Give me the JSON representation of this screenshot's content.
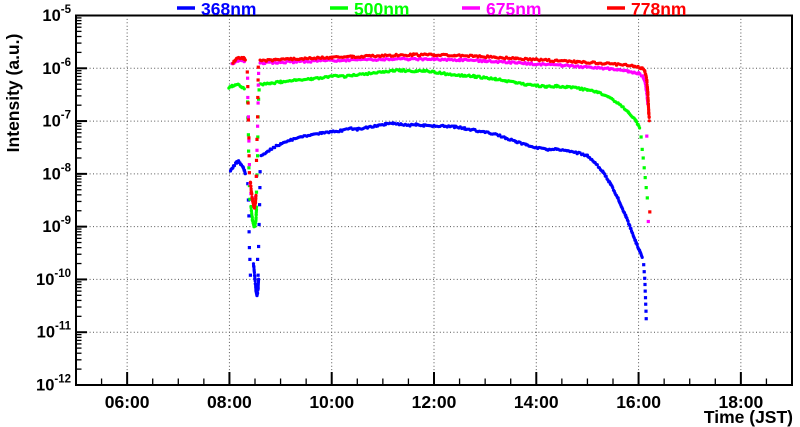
{
  "chart_data": {
    "type": "scatter",
    "title": "",
    "xlabel": "Time (JST)",
    "ylabel": "Intensity (a.u.)",
    "x_axis": {
      "range_hours": [
        5,
        19
      ],
      "tick_hours": [
        6,
        8,
        10,
        12,
        14,
        16,
        18
      ],
      "tick_labels": [
        "06:00",
        "08:00",
        "10:00",
        "12:00",
        "14:00",
        "16:00",
        "18:00"
      ],
      "minor_step": 0.5
    },
    "y_axis": {
      "scale": "log",
      "top_exponent": -5,
      "bottom_exponent": -12,
      "tick_exponents": [
        -5,
        -6,
        -7,
        -8,
        -9,
        -10,
        -11,
        -12
      ]
    },
    "grid": {
      "style": "dotted",
      "color": "#555555",
      "on_major_ticks": true
    },
    "legend_position": "top",
    "series": [
      {
        "name": "368nm",
        "color": "#0000ff",
        "segments": [
          [
            [
              8.02,
              1.15e-08
            ],
            [
              8.08,
              1.4e-08
            ],
            [
              8.14,
              1.65e-08
            ],
            [
              8.18,
              1.75e-08
            ],
            [
              8.22,
              1.5e-08
            ],
            [
              8.27,
              1.35e-08
            ],
            [
              8.31,
              1e-08
            ]
          ],
          [
            [
              8.47,
              2e-10
            ],
            [
              8.5,
              1e-10
            ],
            [
              8.52,
              6e-11
            ],
            [
              8.54,
              5e-11
            ],
            [
              8.56,
              6.5e-11
            ],
            [
              8.57,
              1e-10
            ]
          ],
          [
            [
              8.62,
              2.2e-08
            ],
            [
              8.8,
              2.9e-08
            ],
            [
              9.0,
              3.7e-08
            ],
            [
              9.2,
              4.4e-08
            ],
            [
              9.4,
              5e-08
            ],
            [
              9.6,
              5.5e-08
            ],
            [
              9.8,
              5.9e-08
            ],
            [
              10.0,
              6.2e-08
            ],
            [
              10.2,
              6.6e-08
            ],
            [
              10.35,
              7.2e-08
            ],
            [
              10.5,
              7e-08
            ],
            [
              10.7,
              7.6e-08
            ],
            [
              10.9,
              8.2e-08
            ],
            [
              11.05,
              8.8e-08
            ],
            [
              11.2,
              9.1e-08
            ],
            [
              11.35,
              8.7e-08
            ],
            [
              11.5,
              8.3e-08
            ],
            [
              11.65,
              8.6e-08
            ],
            [
              11.8,
              8.3e-08
            ],
            [
              12.0,
              8e-08
            ],
            [
              12.2,
              8.1e-08
            ],
            [
              12.4,
              7.8e-08
            ],
            [
              12.6,
              7.3e-08
            ],
            [
              12.8,
              6.7e-08
            ],
            [
              13.0,
              6.2e-08
            ],
            [
              13.2,
              5.6e-08
            ],
            [
              13.4,
              4.8e-08
            ],
            [
              13.6,
              4.1e-08
            ],
            [
              13.8,
              3.5e-08
            ],
            [
              14.0,
              3.1e-08
            ],
            [
              14.2,
              2.9e-08
            ],
            [
              14.4,
              2.9e-08
            ],
            [
              14.6,
              2.7e-08
            ],
            [
              14.8,
              2.5e-08
            ],
            [
              15.0,
              2.2e-08
            ],
            [
              15.15,
              1.6e-08
            ],
            [
              15.3,
              1.1e-08
            ],
            [
              15.45,
              6.5e-09
            ],
            [
              15.6,
              3.4e-09
            ],
            [
              15.75,
              1.6e-09
            ],
            [
              15.85,
              9e-10
            ],
            [
              15.95,
              5e-10
            ],
            [
              16.02,
              3.5e-10
            ],
            [
              16.07,
              2.6e-10
            ]
          ]
        ],
        "scatter": [
          [
            8.36,
            6.5e-09
          ],
          [
            8.37,
            3.2e-09
          ],
          [
            8.38,
            1.6e-09
          ],
          [
            8.385,
            8e-10
          ],
          [
            8.39,
            4e-10
          ],
          [
            8.4,
            2.4e-10
          ],
          [
            8.41,
            1.2e-10
          ],
          [
            8.55,
            2.4e-10
          ],
          [
            8.56,
            1.2e-10
          ],
          [
            8.57,
            4.2e-10
          ],
          [
            8.58,
            1.1e-09
          ],
          [
            8.59,
            2.6e-09
          ],
          [
            8.595,
            5.5e-09
          ],
          [
            8.6,
            1.1e-08
          ],
          [
            16.1,
            1.9e-10
          ],
          [
            16.11,
            1.4e-10
          ],
          [
            16.12,
            1.05e-10
          ],
          [
            16.125,
            8e-11
          ],
          [
            16.13,
            6e-11
          ],
          [
            16.135,
            4.5e-11
          ],
          [
            16.14,
            3.4e-11
          ],
          [
            16.145,
            2.5e-11
          ],
          [
            16.15,
            1.8e-11
          ]
        ]
      },
      {
        "name": "500nm",
        "color": "#00ff00",
        "segments": [
          [
            [
              7.99,
              4.2e-07
            ],
            [
              8.05,
              4.6e-07
            ],
            [
              8.11,
              4.9e-07
            ],
            [
              8.17,
              5e-07
            ],
            [
              8.23,
              4.6e-07
            ],
            [
              8.29,
              4.1e-07
            ]
          ],
          [
            [
              8.42,
              2.4e-09
            ],
            [
              8.45,
              1.35e-09
            ],
            [
              8.48,
              1e-09
            ],
            [
              8.5,
              1.05e-09
            ],
            [
              8.52,
              1.4e-09
            ],
            [
              8.53,
              2.3e-09
            ]
          ],
          [
            [
              8.6,
              4.9e-07
            ],
            [
              8.8,
              5.2e-07
            ],
            [
              9.0,
              5.5e-07
            ],
            [
              9.3,
              5.9e-07
            ],
            [
              9.6,
              6.3e-07
            ],
            [
              9.9,
              6.8e-07
            ],
            [
              10.1,
              7.2e-07
            ],
            [
              10.25,
              7e-07
            ],
            [
              10.4,
              7.4e-07
            ],
            [
              10.7,
              7.9e-07
            ],
            [
              11.0,
              8.5e-07
            ],
            [
              11.2,
              8.9e-07
            ],
            [
              11.35,
              9.2e-07
            ],
            [
              11.5,
              8.9e-07
            ],
            [
              11.65,
              8.7e-07
            ],
            [
              11.8,
              8.9e-07
            ],
            [
              12.0,
              8.5e-07
            ],
            [
              12.2,
              7.9e-07
            ],
            [
              12.4,
              7.5e-07
            ],
            [
              12.6,
              7.3e-07
            ],
            [
              12.8,
              7e-07
            ],
            [
              13.0,
              6.6e-07
            ],
            [
              13.2,
              6.2e-07
            ],
            [
              13.4,
              5.8e-07
            ],
            [
              13.6,
              5.3e-07
            ],
            [
              13.8,
              4.9e-07
            ],
            [
              14.0,
              4.7e-07
            ],
            [
              14.2,
              4.5e-07
            ],
            [
              14.4,
              4.6e-07
            ],
            [
              14.6,
              4.4e-07
            ],
            [
              14.8,
              4.2e-07
            ],
            [
              15.0,
              3.9e-07
            ],
            [
              15.2,
              3.5e-07
            ],
            [
              15.4,
              2.9e-07
            ],
            [
              15.6,
              2.2e-07
            ],
            [
              15.8,
              1.5e-07
            ],
            [
              15.95,
              1e-07
            ],
            [
              16.02,
              7.5e-08
            ]
          ]
        ],
        "scatter": [
          [
            8.355,
            2.3e-07
          ],
          [
            8.36,
            1.15e-07
          ],
          [
            8.37,
            5.5e-08
          ],
          [
            8.375,
            2.7e-08
          ],
          [
            8.38,
            1.3e-08
          ],
          [
            8.39,
            6e-09
          ],
          [
            8.4,
            3.3e-09
          ],
          [
            8.53,
            4.5e-09
          ],
          [
            8.54,
            9.5e-09
          ],
          [
            8.55,
            2.2e-08
          ],
          [
            8.555,
            5e-08
          ],
          [
            8.56,
            1.2e-07
          ],
          [
            8.57,
            2.6e-07
          ],
          [
            8.58,
            3.9e-07
          ],
          [
            16.05,
            5e-08
          ],
          [
            16.07,
            2.9e-08
          ],
          [
            16.09,
            2e-08
          ],
          [
            16.11,
            1.3e-08
          ],
          [
            16.13,
            8.5e-09
          ],
          [
            16.15,
            5.5e-09
          ],
          [
            16.17,
            3.5e-09
          ]
        ]
      },
      {
        "name": "675nm",
        "color": "#ff00ff",
        "segments": [
          [
            [
              8.05,
              1.2e-06
            ],
            [
              8.11,
              1.3e-06
            ],
            [
              8.17,
              1.38e-06
            ],
            [
              8.23,
              1.42e-06
            ],
            [
              8.29,
              1.32e-06
            ]
          ],
          [
            [
              8.6,
              1.25e-06
            ],
            [
              9.0,
              1.3e-06
            ],
            [
              9.5,
              1.35e-06
            ],
            [
              10.0,
              1.4e-06
            ],
            [
              10.5,
              1.44e-06
            ],
            [
              11.0,
              1.47e-06
            ],
            [
              11.5,
              1.5e-06
            ],
            [
              12.0,
              1.48e-06
            ],
            [
              12.5,
              1.44e-06
            ],
            [
              13.0,
              1.38e-06
            ],
            [
              13.5,
              1.3e-06
            ],
            [
              14.0,
              1.2e-06
            ],
            [
              14.5,
              1.13e-06
            ],
            [
              15.0,
              1.06e-06
            ],
            [
              15.4,
              9.8e-07
            ],
            [
              15.8,
              8.8e-07
            ],
            [
              16.0,
              8e-07
            ],
            [
              16.08,
              7.2e-07
            ],
            [
              16.13,
              5.5e-07
            ],
            [
              16.15,
              4e-07
            ],
            [
              16.17,
              2.8e-07
            ],
            [
              16.18,
              2.1e-07
            ]
          ]
        ],
        "scatter": [
          [
            8.355,
            6.5e-07
          ],
          [
            8.36,
            2.8e-07
          ],
          [
            8.37,
            1.2e-07
          ],
          [
            8.38,
            4.2e-08
          ],
          [
            8.39,
            1.5e-08
          ],
          [
            8.4,
            6.5e-09
          ],
          [
            8.42,
            4.2e-09
          ],
          [
            8.45,
            3.2e-09
          ],
          [
            8.48,
            2.9e-09
          ],
          [
            8.51,
            3.6e-09
          ],
          [
            8.53,
            9e-09
          ],
          [
            8.54,
            2.8e-08
          ],
          [
            8.55,
            8e-08
          ],
          [
            8.56,
            2.2e-07
          ],
          [
            8.565,
            4.8e-07
          ],
          [
            8.57,
            8e-07
          ],
          [
            16.16,
            5.2e-08
          ],
          [
            16.19,
            1.25e-09
          ]
        ]
      },
      {
        "name": "778nm",
        "color": "#ff0000",
        "segments": [
          [
            [
              8.07,
              1.3e-06
            ],
            [
              8.12,
              1.45e-06
            ],
            [
              8.18,
              1.55e-06
            ],
            [
              8.24,
              1.6e-06
            ],
            [
              8.28,
              1.55e-06
            ],
            [
              8.31,
              1.42e-06
            ]
          ],
          [
            [
              8.41,
              7e-09
            ],
            [
              8.43,
              4.6e-09
            ],
            [
              8.45,
              3.3e-09
            ],
            [
              8.47,
              2.5e-09
            ],
            [
              8.49,
              2.3e-09
            ],
            [
              8.51,
              2.8e-09
            ],
            [
              8.52,
              4e-09
            ]
          ],
          [
            [
              8.6,
              1.38e-06
            ],
            [
              8.9,
              1.44e-06
            ],
            [
              9.2,
              1.5e-06
            ],
            [
              9.6,
              1.55e-06
            ],
            [
              10.0,
              1.6e-06
            ],
            [
              10.4,
              1.65e-06
            ],
            [
              10.8,
              1.7e-06
            ],
            [
              11.2,
              1.76e-06
            ],
            [
              11.6,
              1.8e-06
            ],
            [
              12.0,
              1.79e-06
            ],
            [
              12.4,
              1.77e-06
            ],
            [
              12.8,
              1.7e-06
            ],
            [
              13.2,
              1.62e-06
            ],
            [
              13.6,
              1.53e-06
            ],
            [
              14.0,
              1.46e-06
            ],
            [
              14.4,
              1.38e-06
            ],
            [
              14.8,
              1.32e-06
            ],
            [
              15.2,
              1.26e-06
            ],
            [
              15.6,
              1.18e-06
            ],
            [
              15.9,
              1.1e-06
            ],
            [
              16.05,
              1.02e-06
            ],
            [
              16.12,
              9.2e-07
            ],
            [
              16.16,
              6e-07
            ],
            [
              16.18,
              3.5e-07
            ],
            [
              16.19,
              2.2e-07
            ],
            [
              16.2,
              1.4e-07
            ],
            [
              16.21,
              1.05e-07
            ]
          ]
        ],
        "scatter": [
          [
            8.35,
            8.5e-07
          ],
          [
            8.36,
            4.5e-07
          ],
          [
            8.365,
            2.2e-07
          ],
          [
            8.37,
            1.05e-07
          ],
          [
            8.38,
            4.8e-08
          ],
          [
            8.385,
            2.2e-08
          ],
          [
            8.39,
            1.05e-08
          ],
          [
            8.525,
            9e-09
          ],
          [
            8.53,
            1.8e-08
          ],
          [
            8.54,
            4.5e-08
          ],
          [
            8.55,
            1.2e-07
          ],
          [
            8.555,
            2.8e-07
          ],
          [
            8.56,
            6e-07
          ],
          [
            8.565,
            1.05e-06
          ],
          [
            16.22,
            1.9e-09
          ]
        ]
      }
    ]
  }
}
